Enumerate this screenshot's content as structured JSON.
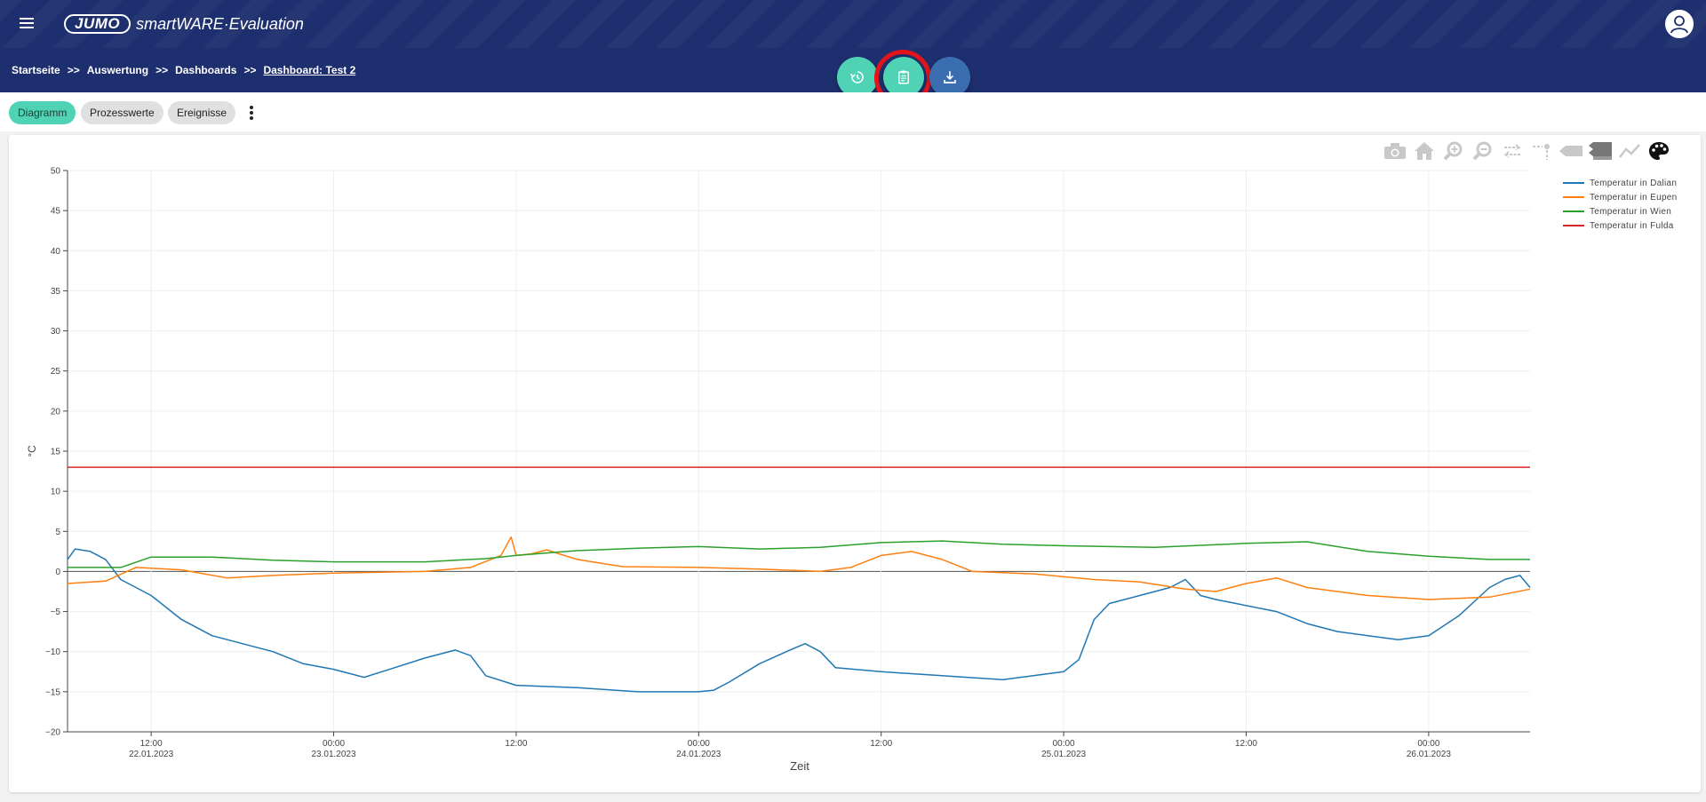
{
  "header": {
    "logo_brand": "JUMO",
    "logo_product": "smartWARE·Evaluation",
    "menu_icon": "hamburger-menu-icon",
    "user_icon": "user-avatar-icon"
  },
  "breadcrumb": {
    "items": [
      "Startseite",
      "Auswertung",
      "Dashboards",
      "Dashboard: Test 2"
    ],
    "separator": ">>"
  },
  "fab_buttons": [
    {
      "icon": "history-icon",
      "color": "#4fd3b4"
    },
    {
      "icon": "clipboard-icon",
      "color": "#4fd3b4"
    },
    {
      "icon": "download-icon",
      "color": "#3b6eb0"
    }
  ],
  "tabs": [
    {
      "label": "Diagramm",
      "active": true
    },
    {
      "label": "Prozesswerte",
      "active": false
    },
    {
      "label": "Ereignisse",
      "active": false
    }
  ],
  "toolbar_icons": [
    "camera-icon",
    "home-icon",
    "zoom-in-icon",
    "zoom-out-icon",
    "pan-icon",
    "spike-lines-icon",
    "hover-closest-icon",
    "hover-compare-icon",
    "toggle-lines-icon",
    "palette-icon"
  ],
  "colors": {
    "header_bg": "#1d2f6e",
    "accent": "#4fd3b4",
    "highlight": "#e0141a"
  },
  "chart_data": {
    "type": "line",
    "xlabel": "Zeit",
    "ylabel": "°C",
    "ylim": [
      -20,
      50
    ],
    "yticks": [
      50,
      45,
      40,
      35,
      30,
      25,
      20,
      15,
      10,
      5,
      0,
      -5,
      -10,
      -15,
      -20
    ],
    "ytick_labels": [
      "50",
      "45",
      "40",
      "35",
      "30",
      "25",
      "20",
      "15",
      "10",
      "5",
      "0",
      "−5",
      "−10",
      "−15",
      "−20"
    ],
    "xlim": [
      "2023-01-22T06:30",
      "2023-01-26T06:40"
    ],
    "xticks": [
      {
        "t": "2023-01-22T12:00",
        "l1": "12:00",
        "l2": "22.01.2023"
      },
      {
        "t": "2023-01-23T00:00",
        "l1": "00:00",
        "l2": "23.01.2023"
      },
      {
        "t": "2023-01-23T12:00",
        "l1": "12:00",
        "l2": ""
      },
      {
        "t": "2023-01-24T00:00",
        "l1": "00:00",
        "l2": "24.01.2023"
      },
      {
        "t": "2023-01-24T12:00",
        "l1": "12:00",
        "l2": ""
      },
      {
        "t": "2023-01-25T00:00",
        "l1": "00:00",
        "l2": "25.01.2023"
      },
      {
        "t": "2023-01-25T12:00",
        "l1": "12:00",
        "l2": ""
      },
      {
        "t": "2023-01-26T00:00",
        "l1": "00:00",
        "l2": "26.01.2023"
      }
    ],
    "grid": true,
    "legend_position": "top-right",
    "series": [
      {
        "name": "Temperatur in Dalian",
        "color": "#1f77b4",
        "points": [
          [
            "2023-01-22T06:30",
            1.5
          ],
          [
            "2023-01-22T07:00",
            2.8
          ],
          [
            "2023-01-22T08:00",
            2.5
          ],
          [
            "2023-01-22T09:00",
            1.5
          ],
          [
            "2023-01-22T10:00",
            -1.0
          ],
          [
            "2023-01-22T12:00",
            -3.0
          ],
          [
            "2023-01-22T14:00",
            -6.0
          ],
          [
            "2023-01-22T16:00",
            -8.0
          ],
          [
            "2023-01-22T18:00",
            -9.0
          ],
          [
            "2023-01-22T20:00",
            -10.0
          ],
          [
            "2023-01-22T22:00",
            -11.5
          ],
          [
            "2023-01-23T00:00",
            -12.2
          ],
          [
            "2023-01-23T02:00",
            -13.2
          ],
          [
            "2023-01-23T04:00",
            -12.0
          ],
          [
            "2023-01-23T06:00",
            -10.8
          ],
          [
            "2023-01-23T08:00",
            -9.8
          ],
          [
            "2023-01-23T09:00",
            -10.5
          ],
          [
            "2023-01-23T10:00",
            -13.0
          ],
          [
            "2023-01-23T12:00",
            -14.2
          ],
          [
            "2023-01-23T16:00",
            -14.5
          ],
          [
            "2023-01-23T20:00",
            -15.0
          ],
          [
            "2023-01-24T00:00",
            -15.0
          ],
          [
            "2023-01-24T01:00",
            -14.8
          ],
          [
            "2023-01-24T02:00",
            -13.8
          ],
          [
            "2023-01-24T04:00",
            -11.5
          ],
          [
            "2023-01-24T06:00",
            -9.8
          ],
          [
            "2023-01-24T07:00",
            -9.0
          ],
          [
            "2023-01-24T08:00",
            -10.0
          ],
          [
            "2023-01-24T09:00",
            -12.0
          ],
          [
            "2023-01-24T12:00",
            -12.5
          ],
          [
            "2023-01-24T16:00",
            -13.0
          ],
          [
            "2023-01-24T20:00",
            -13.5
          ],
          [
            "2023-01-25T00:00",
            -12.5
          ],
          [
            "2023-01-25T01:00",
            -11.0
          ],
          [
            "2023-01-25T02:00",
            -6.0
          ],
          [
            "2023-01-25T03:00",
            -4.0
          ],
          [
            "2023-01-25T05:00",
            -3.0
          ],
          [
            "2023-01-25T07:00",
            -2.0
          ],
          [
            "2023-01-25T08:00",
            -1.0
          ],
          [
            "2023-01-25T09:00",
            -3.0
          ],
          [
            "2023-01-25T10:00",
            -3.5
          ],
          [
            "2023-01-25T14:00",
            -5.0
          ],
          [
            "2023-01-25T16:00",
            -6.5
          ],
          [
            "2023-01-25T18:00",
            -7.5
          ],
          [
            "2023-01-25T20:00",
            -8.0
          ],
          [
            "2023-01-25T22:00",
            -8.5
          ],
          [
            "2023-01-26T00:00",
            -8.0
          ],
          [
            "2023-01-26T02:00",
            -5.5
          ],
          [
            "2023-01-26T04:00",
            -2.0
          ],
          [
            "2023-01-26T05:00",
            -1.0
          ],
          [
            "2023-01-26T06:00",
            -0.5
          ],
          [
            "2023-01-26T06:40",
            -2.0
          ]
        ]
      },
      {
        "name": "Temperatur in Eupen",
        "color": "#ff7f0e",
        "points": [
          [
            "2023-01-22T06:30",
            -1.5
          ],
          [
            "2023-01-22T09:00",
            -1.2
          ],
          [
            "2023-01-22T11:00",
            0.5
          ],
          [
            "2023-01-22T14:00",
            0.2
          ],
          [
            "2023-01-22T17:00",
            -0.8
          ],
          [
            "2023-01-22T20:00",
            -0.5
          ],
          [
            "2023-01-23T00:00",
            -0.2
          ],
          [
            "2023-01-23T06:00",
            0.0
          ],
          [
            "2023-01-23T09:00",
            0.5
          ],
          [
            "2023-01-23T11:00",
            2.0
          ],
          [
            "2023-01-23T11:40",
            4.3
          ],
          [
            "2023-01-23T12:00",
            2.0
          ],
          [
            "2023-01-23T13:00",
            2.2
          ],
          [
            "2023-01-23T14:00",
            2.7
          ],
          [
            "2023-01-23T16:00",
            1.5
          ],
          [
            "2023-01-23T19:00",
            0.6
          ],
          [
            "2023-01-24T00:00",
            0.5
          ],
          [
            "2023-01-24T04:00",
            0.3
          ],
          [
            "2023-01-24T08:00",
            0.0
          ],
          [
            "2023-01-24T10:00",
            0.5
          ],
          [
            "2023-01-24T12:00",
            2.0
          ],
          [
            "2023-01-24T14:00",
            2.5
          ],
          [
            "2023-01-24T16:00",
            1.5
          ],
          [
            "2023-01-24T18:00",
            0.0
          ],
          [
            "2023-01-24T22:00",
            -0.3
          ],
          [
            "2023-01-25T02:00",
            -1.0
          ],
          [
            "2023-01-25T05:00",
            -1.3
          ],
          [
            "2023-01-25T08:00",
            -2.2
          ],
          [
            "2023-01-25T10:00",
            -2.5
          ],
          [
            "2023-01-25T12:00",
            -1.5
          ],
          [
            "2023-01-25T14:00",
            -0.8
          ],
          [
            "2023-01-25T16:00",
            -2.0
          ],
          [
            "2023-01-25T20:00",
            -3.0
          ],
          [
            "2023-01-26T00:00",
            -3.5
          ],
          [
            "2023-01-26T04:00",
            -3.2
          ],
          [
            "2023-01-26T06:40",
            -2.2
          ]
        ]
      },
      {
        "name": "Temperatur in Wien",
        "color": "#2ca02c",
        "points": [
          [
            "2023-01-22T06:30",
            0.5
          ],
          [
            "2023-01-22T10:00",
            0.5
          ],
          [
            "2023-01-22T12:00",
            1.8
          ],
          [
            "2023-01-22T16:00",
            1.8
          ],
          [
            "2023-01-22T20:00",
            1.4
          ],
          [
            "2023-01-23T00:00",
            1.2
          ],
          [
            "2023-01-23T06:00",
            1.2
          ],
          [
            "2023-01-23T10:00",
            1.6
          ],
          [
            "2023-01-23T12:00",
            2.0
          ],
          [
            "2023-01-23T16:00",
            2.6
          ],
          [
            "2023-01-23T20:00",
            2.9
          ],
          [
            "2023-01-24T00:00",
            3.1
          ],
          [
            "2023-01-24T04:00",
            2.8
          ],
          [
            "2023-01-24T08:00",
            3.0
          ],
          [
            "2023-01-24T12:00",
            3.6
          ],
          [
            "2023-01-24T16:00",
            3.8
          ],
          [
            "2023-01-24T20:00",
            3.4
          ],
          [
            "2023-01-25T00:00",
            3.2
          ],
          [
            "2023-01-25T06:00",
            3.0
          ],
          [
            "2023-01-25T12:00",
            3.5
          ],
          [
            "2023-01-25T16:00",
            3.7
          ],
          [
            "2023-01-25T20:00",
            2.5
          ],
          [
            "2023-01-26T00:00",
            1.9
          ],
          [
            "2023-01-26T04:00",
            1.5
          ],
          [
            "2023-01-26T06:40",
            1.5
          ]
        ]
      },
      {
        "name": "Temperatur in Fulda",
        "color": "#d62728",
        "points": [
          [
            "2023-01-22T06:30",
            13
          ],
          [
            "2023-01-26T06:40",
            13
          ]
        ]
      }
    ]
  }
}
